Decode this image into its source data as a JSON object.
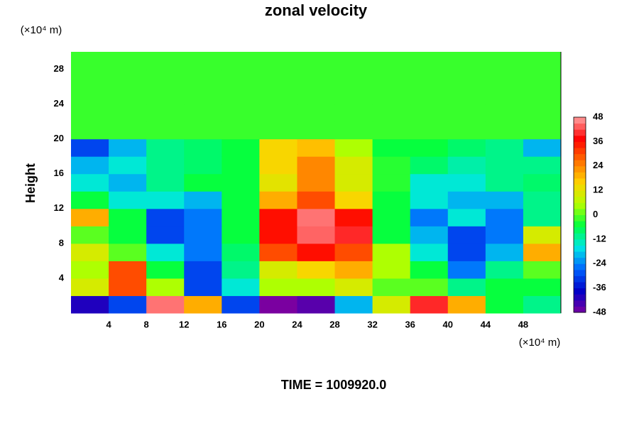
{
  "chart_data": {
    "type": "heatmap",
    "title": "zonal velocity",
    "ylabel": "Height",
    "y_unit": "(×10⁴ m)",
    "x_unit": "(×10⁴ m)",
    "footer": "TIME = 1009920.0",
    "x": [
      2,
      6,
      10,
      14,
      18,
      22,
      26,
      30,
      34,
      38,
      42,
      46,
      50
    ],
    "y": [
      1,
      3,
      5,
      7,
      9,
      11,
      13,
      15,
      17,
      19,
      21,
      23,
      25,
      27,
      29
    ],
    "values": [
      [
        -40,
        -30,
        45,
        20,
        -30,
        -48,
        -45,
        -20,
        10,
        40,
        20,
        -5,
        -10
      ],
      [
        10,
        30,
        5,
        -30,
        -15,
        5,
        5,
        10,
        0,
        0,
        -10,
        -5,
        -5
      ],
      [
        5,
        30,
        -5,
        -30,
        -10,
        10,
        15,
        20,
        5,
        -5,
        -25,
        -10,
        0
      ],
      [
        10,
        0,
        -15,
        -25,
        -8,
        30,
        36,
        30,
        5,
        -15,
        -30,
        -20,
        20
      ],
      [
        0,
        -5,
        -30,
        -25,
        -5,
        36,
        44,
        40,
        -5,
        -20,
        -30,
        -25,
        10
      ],
      [
        20,
        -5,
        -30,
        -25,
        -5,
        36,
        45,
        36,
        -5,
        -25,
        -15,
        -25,
        -10
      ],
      [
        -5,
        -15,
        -15,
        -20,
        -5,
        20,
        30,
        15,
        -5,
        -15,
        -20,
        -20,
        -10
      ],
      [
        -15,
        -20,
        -10,
        -5,
        -5,
        12,
        24,
        10,
        -3,
        -15,
        -15,
        -10,
        -8
      ],
      [
        -20,
        -15,
        -10,
        -8,
        -5,
        15,
        24,
        10,
        -3,
        -8,
        -12,
        -10,
        -10
      ],
      [
        -30,
        -20,
        -10,
        -8,
        -5,
        15,
        18,
        5,
        -5,
        -5,
        -8,
        -10,
        -20
      ],
      [
        -2,
        -2,
        -2,
        -2,
        -2,
        -2,
        -2,
        -2,
        -2,
        -2,
        -2,
        -2,
        -2
      ],
      [
        -2,
        -2,
        -2,
        -2,
        -2,
        -2,
        -2,
        -2,
        -2,
        -2,
        -2,
        -2,
        -2
      ],
      [
        -2,
        -2,
        -2,
        -2,
        -2,
        -2,
        -2,
        -2,
        -2,
        -2,
        -2,
        -2,
        -2
      ],
      [
        -2,
        -2,
        -2,
        -2,
        -2,
        -2,
        -2,
        -2,
        -2,
        -2,
        -2,
        -2,
        -2
      ],
      [
        -2,
        -2,
        -2,
        -2,
        -2,
        -2,
        -2,
        -2,
        -2,
        -2,
        -2,
        -2,
        -2
      ]
    ],
    "xlim": [
      0,
      52
    ],
    "ylim": [
      0,
      30
    ],
    "xticks": [
      4,
      8,
      12,
      16,
      20,
      24,
      28,
      32,
      36,
      40,
      44,
      48
    ],
    "yticks": [
      4,
      8,
      12,
      16,
      20,
      24,
      28
    ],
    "clim": [
      -48,
      48
    ],
    "cticks": [
      48,
      36,
      24,
      12,
      0,
      -12,
      -24,
      -36,
      -48
    ],
    "colormap": [
      "#7a00a0",
      "#0000c8",
      "#0064ff",
      "#00e6e6",
      "#00ff40",
      "#b4ff00",
      "#ffd200",
      "#ff6e00",
      "#ff0000",
      "#ffa0a0"
    ]
  }
}
